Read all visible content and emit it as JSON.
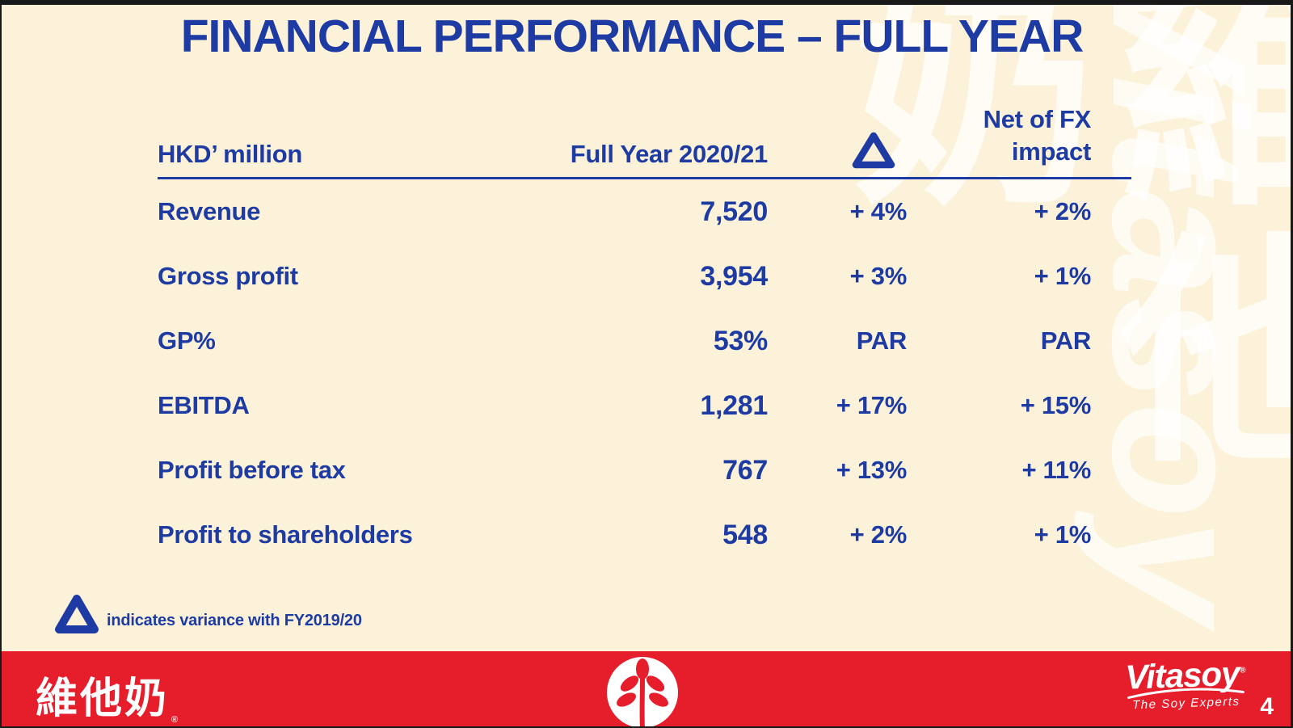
{
  "slide": {
    "title": "FINANCIAL PERFORMANCE – FULL YEAR",
    "page_number": "4"
  },
  "table": {
    "header": {
      "unit": "HKD’ million",
      "period": "Full Year 2020/21",
      "delta_symbol": "Δ",
      "fx_line1": "Net of FX",
      "fx_line2": "impact"
    },
    "rows": [
      {
        "label": "Revenue",
        "value": "7,520",
        "delta": "+ 4%",
        "fx": "+ 2%"
      },
      {
        "label": "Gross profit",
        "value": "3,954",
        "delta": "+ 3%",
        "fx": "+ 1%"
      },
      {
        "label": "GP%",
        "value": "53%",
        "delta": "PAR",
        "fx": "PAR"
      },
      {
        "label": "EBITDA",
        "value": "1,281",
        "delta": "+ 17%",
        "fx": "+ 15%"
      },
      {
        "label": "Profit before tax",
        "value": "767",
        "delta": "+ 13%",
        "fx": "+ 11%"
      },
      {
        "label": "Profit to shareholders",
        "value": "548",
        "delta": "+ 2%",
        "fx": "+ 1%"
      }
    ]
  },
  "footnote": {
    "delta_symbol": "Δ",
    "text": "indicates variance with FY2019/20"
  },
  "footer": {
    "chinese_wordmark": "維他奶",
    "registered_mark": "®",
    "brand": "Vitasoy",
    "tagline": "The Soy Experts"
  },
  "watermark": {
    "chinese": "維他奶",
    "latin": "Vitasoy"
  },
  "colors": {
    "text_blue": "#1d3ba3",
    "footer_red": "#e61e2b",
    "background_cream": "#fcf2d9"
  }
}
